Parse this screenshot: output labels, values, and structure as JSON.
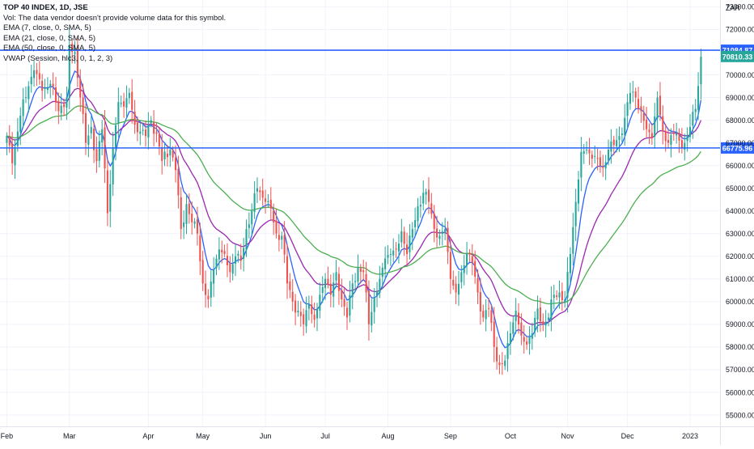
{
  "chart_data": {
    "type": "candlestick",
    "title": "TOP 40 INDEX, 1D, JSE",
    "currency": "ZAR",
    "legend_lines": [
      "Vol: The data vendor doesn't provide volume data for this symbol.",
      "EMA (7, close, 0, SMA, 5)",
      "EMA (21, close, 0, SMA, 5)",
      "EMA (50, close, 0, SMA, 5)",
      "VWAP (Session, hlc3, 0, 1, 2, 3)"
    ],
    "ylim": [
      54500,
      73300
    ],
    "y_ticks": [
      {
        "value": 55000,
        "label": "55000.00"
      },
      {
        "value": 56000,
        "label": "56000.00"
      },
      {
        "value": 57000,
        "label": "57000.00"
      },
      {
        "value": 58000,
        "label": "58000.00"
      },
      {
        "value": 59000,
        "label": "59000.00"
      },
      {
        "value": 60000,
        "label": "60000.00"
      },
      {
        "value": 61000,
        "label": "61000.00"
      },
      {
        "value": 62000,
        "label": "62000.00"
      },
      {
        "value": 63000,
        "label": "63000.00"
      },
      {
        "value": 64000,
        "label": "64000.00"
      },
      {
        "value": 65000,
        "label": "65000.00"
      },
      {
        "value": 66000,
        "label": "66000.00"
      },
      {
        "value": 67000,
        "label": "67000.00"
      },
      {
        "value": 68000,
        "label": "68000.00"
      },
      {
        "value": 69000,
        "label": "69000.00"
      },
      {
        "value": 70000,
        "label": "70000.00"
      },
      {
        "value": 72000,
        "label": "72000.00"
      },
      {
        "value": 73000,
        "label": "73000.00"
      }
    ],
    "x_ticks": [
      {
        "label": "Feb",
        "day": 0
      },
      {
        "label": "Mar",
        "day": 23
      },
      {
        "label": "Apr",
        "day": 52
      },
      {
        "label": "May",
        "day": 72
      },
      {
        "label": "Jun",
        "day": 95
      },
      {
        "label": "Jul",
        "day": 117
      },
      {
        "label": "Aug",
        "day": 140
      },
      {
        "label": "Sep",
        "day": 163
      },
      {
        "label": "Oct",
        "day": 185
      },
      {
        "label": "Nov",
        "day": 206
      },
      {
        "label": "Dec",
        "day": 228
      },
      {
        "label": "2023",
        "day": 251
      }
    ],
    "x_domain": [
      -2.5,
      262
    ],
    "horizontal_lines": [
      {
        "value": 71084.87,
        "label": "71084.87",
        "color": "#2962ff"
      },
      {
        "value": 66775.96,
        "label": "66775.96",
        "color": "#2962ff"
      }
    ],
    "price_label": {
      "value": 70810.33,
      "label": "70810.33",
      "color": "#26a69a"
    },
    "axis_label_ZAR": "ZAR",
    "colors": {
      "up": "#26a69a",
      "down": "#ef5350",
      "ema7": "#2962ff",
      "ema21": "#9c27b0",
      "ema50": "#4caf50"
    },
    "close_anchors": [
      [
        0,
        67300
      ],
      [
        2,
        66100
      ],
      [
        5,
        68200
      ],
      [
        8,
        69500
      ],
      [
        10,
        70200
      ],
      [
        13,
        69300
      ],
      [
        16,
        69600
      ],
      [
        19,
        68400
      ],
      [
        22,
        69000
      ],
      [
        23,
        71300
      ],
      [
        25,
        71000
      ],
      [
        27,
        69000
      ],
      [
        29,
        67000
      ],
      [
        31,
        67700
      ],
      [
        33,
        66200
      ],
      [
        35,
        67600
      ],
      [
        37,
        63900
      ],
      [
        39,
        66800
      ],
      [
        41,
        68800
      ],
      [
        43,
        68600
      ],
      [
        45,
        69200
      ],
      [
        47,
        67800
      ],
      [
        49,
        67500
      ],
      [
        51,
        67300
      ],
      [
        53,
        68000
      ],
      [
        55,
        67400
      ],
      [
        57,
        66200
      ],
      [
        60,
        66700
      ],
      [
        62,
        65800
      ],
      [
        64,
        63200
      ],
      [
        66,
        64300
      ],
      [
        68,
        63500
      ],
      [
        70,
        63000
      ],
      [
        72,
        60800
      ],
      [
        74,
        60100
      ],
      [
        76,
        61400
      ],
      [
        78,
        62300
      ],
      [
        80,
        62100
      ],
      [
        82,
        61300
      ],
      [
        84,
        62000
      ],
      [
        86,
        61800
      ],
      [
        88,
        63200
      ],
      [
        90,
        64000
      ],
      [
        92,
        65000
      ],
      [
        95,
        64400
      ],
      [
        97,
        64100
      ],
      [
        99,
        63000
      ],
      [
        101,
        62900
      ],
      [
        103,
        60800
      ],
      [
        105,
        60000
      ],
      [
        107,
        59600
      ],
      [
        109,
        59000
      ],
      [
        111,
        59900
      ],
      [
        113,
        59200
      ],
      [
        115,
        60300
      ],
      [
        117,
        61000
      ],
      [
        119,
        60300
      ],
      [
        121,
        61300
      ],
      [
        123,
        60100
      ],
      [
        125,
        59300
      ],
      [
        127,
        60800
      ],
      [
        129,
        61500
      ],
      [
        131,
        61300
      ],
      [
        133,
        59000
      ],
      [
        135,
        60200
      ],
      [
        137,
        61000
      ],
      [
        139,
        61900
      ],
      [
        141,
        62100
      ],
      [
        143,
        62300
      ],
      [
        145,
        63100
      ],
      [
        147,
        62100
      ],
      [
        149,
        63200
      ],
      [
        151,
        64200
      ],
      [
        153,
        64800
      ],
      [
        155,
        64400
      ],
      [
        157,
        63200
      ],
      [
        159,
        62900
      ],
      [
        161,
        63200
      ],
      [
        163,
        61000
      ],
      [
        165,
        60400
      ],
      [
        167,
        61300
      ],
      [
        169,
        62100
      ],
      [
        171,
        61700
      ],
      [
        173,
        60400
      ],
      [
        175,
        59300
      ],
      [
        177,
        59700
      ],
      [
        179,
        58000
      ],
      [
        181,
        57200
      ],
      [
        183,
        57400
      ],
      [
        185,
        58600
      ],
      [
        187,
        59600
      ],
      [
        189,
        58500
      ],
      [
        191,
        58100
      ],
      [
        193,
        58600
      ],
      [
        195,
        59700
      ],
      [
        197,
        59000
      ],
      [
        199,
        59300
      ],
      [
        201,
        60300
      ],
      [
        203,
        60400
      ],
      [
        205,
        60100
      ],
      [
        207,
        62100
      ],
      [
        209,
        64400
      ],
      [
        211,
        66600
      ],
      [
        213,
        66700
      ],
      [
        215,
        66300
      ],
      [
        217,
        66300
      ],
      [
        219,
        65900
      ],
      [
        221,
        66700
      ],
      [
        223,
        66900
      ],
      [
        225,
        67300
      ],
      [
        227,
        68100
      ],
      [
        229,
        69200
      ],
      [
        231,
        69000
      ],
      [
        233,
        68400
      ],
      [
        235,
        67600
      ],
      [
        237,
        67200
      ],
      [
        239,
        69000
      ],
      [
        241,
        67500
      ],
      [
        243,
        67000
      ],
      [
        245,
        67400
      ],
      [
        247,
        67100
      ],
      [
        249,
        67000
      ],
      [
        251,
        67700
      ],
      [
        253,
        68500
      ],
      [
        255,
        70800
      ]
    ]
  }
}
